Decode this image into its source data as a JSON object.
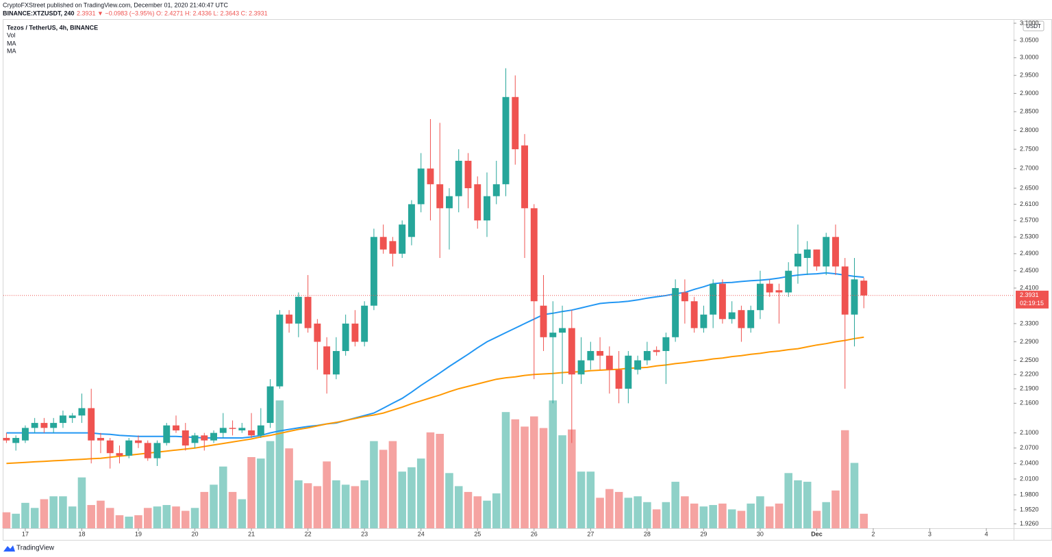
{
  "chart_data": {
    "type": "candlestick",
    "byline": "CryptoFXStreet published on TradingView.com, December 01, 2020 21:40:47 UTC",
    "symbol": "BINANCE:XTZUSDT, 240",
    "quote": "2.3931 ▼ −0.0983 (−3.95%) O: 2.4271 H: 2.4336 L: 2.3643 C: 2.3931",
    "title": "Tezos / TetherUS, 4h, BINANCE",
    "currency": "USDT",
    "brand": "TradingView",
    "current_price": 2.3931,
    "countdown": "02:19:15",
    "log_scale": true,
    "up_color": "#26a69a",
    "down_color": "#ef5350",
    "up_volume_color": "#8fd1c8",
    "down_volume_color": "#f5a3a1",
    "open": [
      2.09,
      2.08,
      2.085,
      2.11,
      2.12,
      2.11,
      2.12,
      2.13,
      2.135,
      2.15,
      2.09,
      2.085,
      2.06,
      2.055,
      2.085,
      2.08,
      2.05,
      2.08,
      2.115,
      2.105,
      2.08,
      2.095,
      2.085,
      2.1,
      2.11,
      2.105,
      2.105,
      2.095,
      2.12,
      2.195,
      2.35,
      2.33,
      2.39,
      2.33,
      2.28,
      2.22,
      2.27,
      2.33,
      2.29,
      2.37,
      2.53,
      2.52,
      2.49,
      2.53,
      2.61,
      2.7,
      2.66,
      2.6,
      2.63,
      2.72,
      2.66,
      2.57,
      2.63,
      2.66,
      2.89,
      2.76,
      2.6,
      2.37,
      2.3,
      2.31,
      2.32,
      2.22,
      2.25,
      2.27,
      2.26,
      2.23,
      2.19,
      2.23,
      2.25,
      2.272,
      2.27,
      2.3,
      2.4,
      2.38,
      2.32,
      2.35,
      2.42,
      2.34,
      2.36,
      2.32,
      2.36,
      2.42,
      2.405,
      2.4,
      2.46,
      2.48,
      2.5,
      2.46,
      2.53,
      2.46,
      2.35,
      2.4271
    ],
    "high": [
      2.1,
      2.095,
      2.115,
      2.13,
      2.13,
      2.13,
      2.145,
      2.14,
      2.18,
      2.19,
      2.1,
      2.09,
      2.075,
      2.09,
      2.095,
      2.085,
      2.085,
      2.12,
      2.135,
      2.12,
      2.1,
      2.1,
      2.105,
      2.14,
      2.125,
      2.12,
      2.14,
      2.15,
      2.21,
      2.36,
      2.36,
      2.4,
      2.44,
      2.34,
      2.3,
      2.3,
      2.35,
      2.36,
      2.38,
      2.55,
      2.56,
      2.53,
      2.57,
      2.62,
      2.74,
      2.83,
      2.82,
      2.65,
      2.75,
      2.74,
      2.68,
      2.69,
      2.72,
      2.97,
      2.95,
      2.79,
      2.61,
      2.44,
      2.38,
      2.37,
      2.36,
      2.3,
      2.29,
      2.3,
      2.28,
      2.27,
      2.27,
      2.26,
      2.29,
      2.28,
      2.31,
      2.43,
      2.43,
      2.39,
      2.37,
      2.43,
      2.43,
      2.38,
      2.37,
      2.37,
      2.45,
      2.43,
      2.42,
      2.47,
      2.56,
      2.52,
      2.5,
      2.54,
      2.56,
      2.48,
      2.48,
      2.4336
    ],
    "low": [
      2.08,
      2.065,
      2.08,
      2.1,
      2.1,
      2.1,
      2.11,
      2.12,
      2.12,
      2.04,
      2.06,
      2.03,
      2.04,
      2.05,
      2.07,
      2.045,
      2.035,
      2.075,
      2.1,
      2.065,
      2.07,
      2.065,
      2.08,
      2.09,
      2.095,
      2.1,
      2.09,
      2.09,
      2.11,
      2.19,
      2.31,
      2.3,
      2.31,
      2.23,
      2.18,
      2.21,
      2.26,
      2.28,
      2.28,
      2.36,
      2.49,
      2.46,
      2.48,
      2.51,
      2.59,
      2.57,
      2.48,
      2.5,
      2.59,
      2.6,
      2.55,
      2.53,
      2.61,
      2.63,
      2.71,
      2.48,
      2.21,
      2.27,
      2.16,
      2.2,
      2.08,
      2.2,
      2.23,
      2.23,
      2.18,
      2.16,
      2.16,
      2.22,
      2.24,
      2.26,
      2.2,
      2.29,
      2.33,
      2.31,
      2.31,
      2.32,
      2.33,
      2.33,
      2.29,
      2.31,
      2.34,
      2.39,
      2.33,
      2.39,
      2.42,
      2.44,
      2.45,
      2.44,
      2.44,
      2.19,
      2.28,
      2.3643
    ],
    "close": [
      2.085,
      2.09,
      2.11,
      2.12,
      2.11,
      2.12,
      2.135,
      2.135,
      2.15,
      2.085,
      2.085,
      2.06,
      2.055,
      2.085,
      2.08,
      2.05,
      2.08,
      2.115,
      2.105,
      2.075,
      2.095,
      2.085,
      2.1,
      2.11,
      2.108,
      2.11,
      2.095,
      2.115,
      2.195,
      2.35,
      2.33,
      2.39,
      2.32,
      2.29,
      2.22,
      2.27,
      2.33,
      2.29,
      2.37,
      2.53,
      2.5,
      2.49,
      2.56,
      2.61,
      2.7,
      2.66,
      2.6,
      2.63,
      2.72,
      2.65,
      2.57,
      2.63,
      2.66,
      2.89,
      2.75,
      2.6,
      2.38,
      2.3,
      2.31,
      2.32,
      2.22,
      2.25,
      2.27,
      2.26,
      2.23,
      2.19,
      2.26,
      2.25,
      2.27,
      2.268,
      2.3,
      2.41,
      2.38,
      2.32,
      2.35,
      2.42,
      2.34,
      2.355,
      2.32,
      2.36,
      2.42,
      2.4,
      2.4,
      2.45,
      2.49,
      2.5,
      2.46,
      2.53,
      2.46,
      2.35,
      2.43,
      2.3931
    ],
    "volume": {
      "name": "Vol",
      "vlim": [
        0,
        700
      ],
      "values": [
        22,
        20,
        35,
        28,
        40,
        44,
        44,
        30,
        70,
        32,
        38,
        28,
        18,
        16,
        18,
        28,
        30,
        32,
        30,
        24,
        28,
        50,
        60,
        85,
        50,
        40,
        98,
        96,
        120,
        176,
        110,
        66,
        62,
        58,
        92,
        66,
        60,
        58,
        66,
        120,
        108,
        120,
        78,
        84,
        96,
        132,
        130,
        76,
        58,
        50,
        44,
        38,
        48,
        160,
        150,
        140,
        154,
        138,
        176,
        128,
        136,
        78,
        78,
        42,
        54,
        50,
        42,
        44,
        36,
        26,
        36,
        64,
        44,
        34,
        30,
        32,
        34,
        26,
        24,
        34,
        44,
        30,
        34,
        76,
        66,
        64,
        24,
        36,
        52,
        135,
        90,
        20
      ]
    },
    "series": [
      {
        "name": "MA",
        "color": "#2196f3",
        "values": [
          2.1,
          2.1,
          2.1,
          2.1,
          2.1,
          2.1,
          2.1,
          2.1,
          2.1,
          2.1,
          2.098,
          2.097,
          2.095,
          2.094,
          2.093,
          2.093,
          2.093,
          2.093,
          2.093,
          2.092,
          2.091,
          2.09,
          2.09,
          2.09,
          2.09,
          2.09,
          2.092,
          2.095,
          2.1,
          2.104,
          2.107,
          2.11,
          2.113,
          2.115,
          2.118,
          2.12,
          2.125,
          2.13,
          2.135,
          2.14,
          2.15,
          2.16,
          2.17,
          2.183,
          2.197,
          2.21,
          2.223,
          2.237,
          2.25,
          2.263,
          2.277,
          2.29,
          2.3,
          2.31,
          2.32,
          2.33,
          2.34,
          2.35,
          2.353,
          2.357,
          2.36,
          2.365,
          2.37,
          2.375,
          2.377,
          2.378,
          2.38,
          2.383,
          2.387,
          2.39,
          2.393,
          2.397,
          2.4,
          2.407,
          2.413,
          2.42,
          2.422,
          2.423,
          2.425,
          2.427,
          2.428,
          2.43,
          2.433,
          2.437,
          2.44,
          2.442,
          2.443,
          2.445,
          2.443,
          2.44,
          2.437,
          2.435
        ]
      },
      {
        "name": "MA",
        "color": "#ff9800",
        "values": [
          2.04,
          2.041,
          2.042,
          2.043,
          2.044,
          2.045,
          2.046,
          2.047,
          2.048,
          2.049,
          2.05,
          2.052,
          2.054,
          2.056,
          2.058,
          2.06,
          2.062,
          2.064,
          2.066,
          2.068,
          2.07,
          2.073,
          2.076,
          2.079,
          2.082,
          2.085,
          2.088,
          2.092,
          2.095,
          2.099,
          2.103,
          2.107,
          2.11,
          2.114,
          2.118,
          2.121,
          2.125,
          2.129,
          2.133,
          2.136,
          2.14,
          2.146,
          2.152,
          2.159,
          2.165,
          2.171,
          2.177,
          2.184,
          2.19,
          2.195,
          2.2,
          2.205,
          2.21,
          2.213,
          2.215,
          2.218,
          2.22,
          2.221,
          2.222,
          2.224,
          2.225,
          2.226,
          2.228,
          2.229,
          2.23,
          2.231,
          2.233,
          2.234,
          2.235,
          2.238,
          2.24,
          2.243,
          2.245,
          2.248,
          2.25,
          2.253,
          2.255,
          2.258,
          2.26,
          2.263,
          2.265,
          2.268,
          2.27,
          2.273,
          2.275,
          2.279,
          2.283,
          2.286,
          2.29,
          2.293,
          2.297,
          2.3
        ]
      }
    ],
    "xlim": [
      -0.32,
      106.9
    ],
    "xticks": [
      {
        "value": 2,
        "label": "17"
      },
      {
        "value": 8,
        "label": "18"
      },
      {
        "value": 14,
        "label": "19"
      },
      {
        "value": 20,
        "label": "20"
      },
      {
        "value": 26,
        "label": "21"
      },
      {
        "value": 32,
        "label": "22"
      },
      {
        "value": 38,
        "label": "23"
      },
      {
        "value": 44,
        "label": "24"
      },
      {
        "value": 50,
        "label": "25"
      },
      {
        "value": 56,
        "label": "26"
      },
      {
        "value": 62,
        "label": "27"
      },
      {
        "value": 68,
        "label": "28"
      },
      {
        "value": 74,
        "label": "29"
      },
      {
        "value": 80,
        "label": "30"
      },
      {
        "value": 86,
        "label": "Dec"
      },
      {
        "value": 92,
        "label": "2"
      },
      {
        "value": 98,
        "label": "3"
      },
      {
        "value": 104,
        "label": "4"
      }
    ],
    "ylim": [
      1.918,
      3.11
    ],
    "yticks": [
      {
        "value": 3.1,
        "label": "3.1000"
      },
      {
        "value": 3.05,
        "label": "3.0500"
      },
      {
        "value": 3.0,
        "label": "3.0000"
      },
      {
        "value": 2.95,
        "label": "2.9500"
      },
      {
        "value": 2.9,
        "label": "2.9000"
      },
      {
        "value": 2.85,
        "label": "2.8500"
      },
      {
        "value": 2.8,
        "label": "2.8000"
      },
      {
        "value": 2.75,
        "label": "2.7500"
      },
      {
        "value": 2.7,
        "label": "2.7000"
      },
      {
        "value": 2.65,
        "label": "2.6500"
      },
      {
        "value": 2.61,
        "label": "2.6100"
      },
      {
        "value": 2.57,
        "label": "2.5700"
      },
      {
        "value": 2.53,
        "label": "2.5300"
      },
      {
        "value": 2.49,
        "label": "2.4900"
      },
      {
        "value": 2.45,
        "label": "2.4500"
      },
      {
        "value": 2.41,
        "label": "2.4100"
      },
      {
        "value": 2.33,
        "label": "2.3300"
      },
      {
        "value": 2.29,
        "label": "2.2900"
      },
      {
        "value": 2.25,
        "label": "2.2500"
      },
      {
        "value": 2.22,
        "label": "2.2200"
      },
      {
        "value": 2.19,
        "label": "2.1900"
      },
      {
        "value": 2.16,
        "label": "2.1600"
      },
      {
        "value": 2.1,
        "label": "2.1000"
      },
      {
        "value": 2.07,
        "label": "2.0700"
      },
      {
        "value": 2.04,
        "label": "2.0400"
      },
      {
        "value": 2.01,
        "label": "2.0100"
      },
      {
        "value": 1.98,
        "label": "1.9800"
      },
      {
        "value": 1.952,
        "label": "1.9520"
      },
      {
        "value": 1.926,
        "label": "1.9260"
      }
    ]
  }
}
